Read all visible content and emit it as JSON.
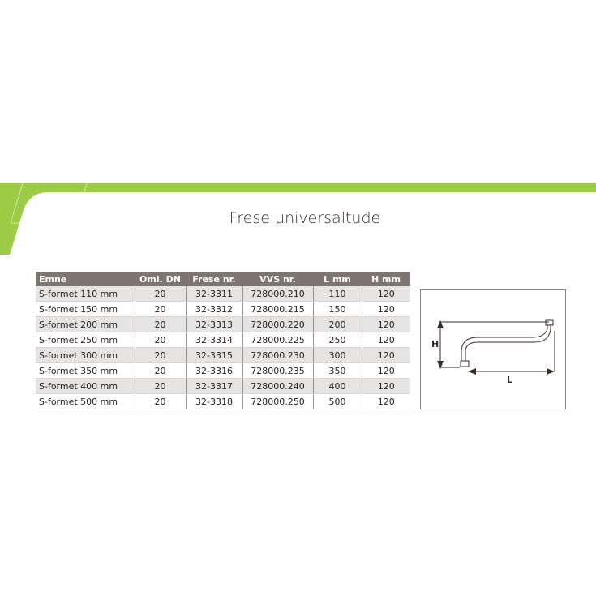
{
  "title": "Frese universaltude",
  "colors": {
    "accent": "#9ccc44",
    "header": "#7e7571"
  },
  "table": {
    "headers": [
      "Emne",
      "Oml. DN",
      "Frese nr.",
      "VVS nr.",
      "L mm",
      "H mm"
    ],
    "rows": [
      [
        "S-formet 110 mm",
        "20",
        "32-3311",
        "728000.210",
        "110",
        "120"
      ],
      [
        "S-formet 150 mm",
        "20",
        "32-3312",
        "728000.215",
        "150",
        "120"
      ],
      [
        "S-formet 200 mm",
        "20",
        "32-3313",
        "728000.220",
        "200",
        "120"
      ],
      [
        "S-formet 250 mm",
        "20",
        "32-3314",
        "728000.225",
        "250",
        "120"
      ],
      [
        "S-formet 300 mm",
        "20",
        "32-3315",
        "728000.230",
        "300",
        "120"
      ],
      [
        "S-formet 350 mm",
        "20",
        "32-3316",
        "728000.235",
        "350",
        "120"
      ],
      [
        "S-formet 400 mm",
        "20",
        "32-3317",
        "728000.240",
        "400",
        "120"
      ],
      [
        "S-formet 500 mm",
        "20",
        "32-3318",
        "728000.250",
        "500",
        "120"
      ]
    ]
  },
  "diagram": {
    "h_label": "H",
    "l_label": "L"
  }
}
